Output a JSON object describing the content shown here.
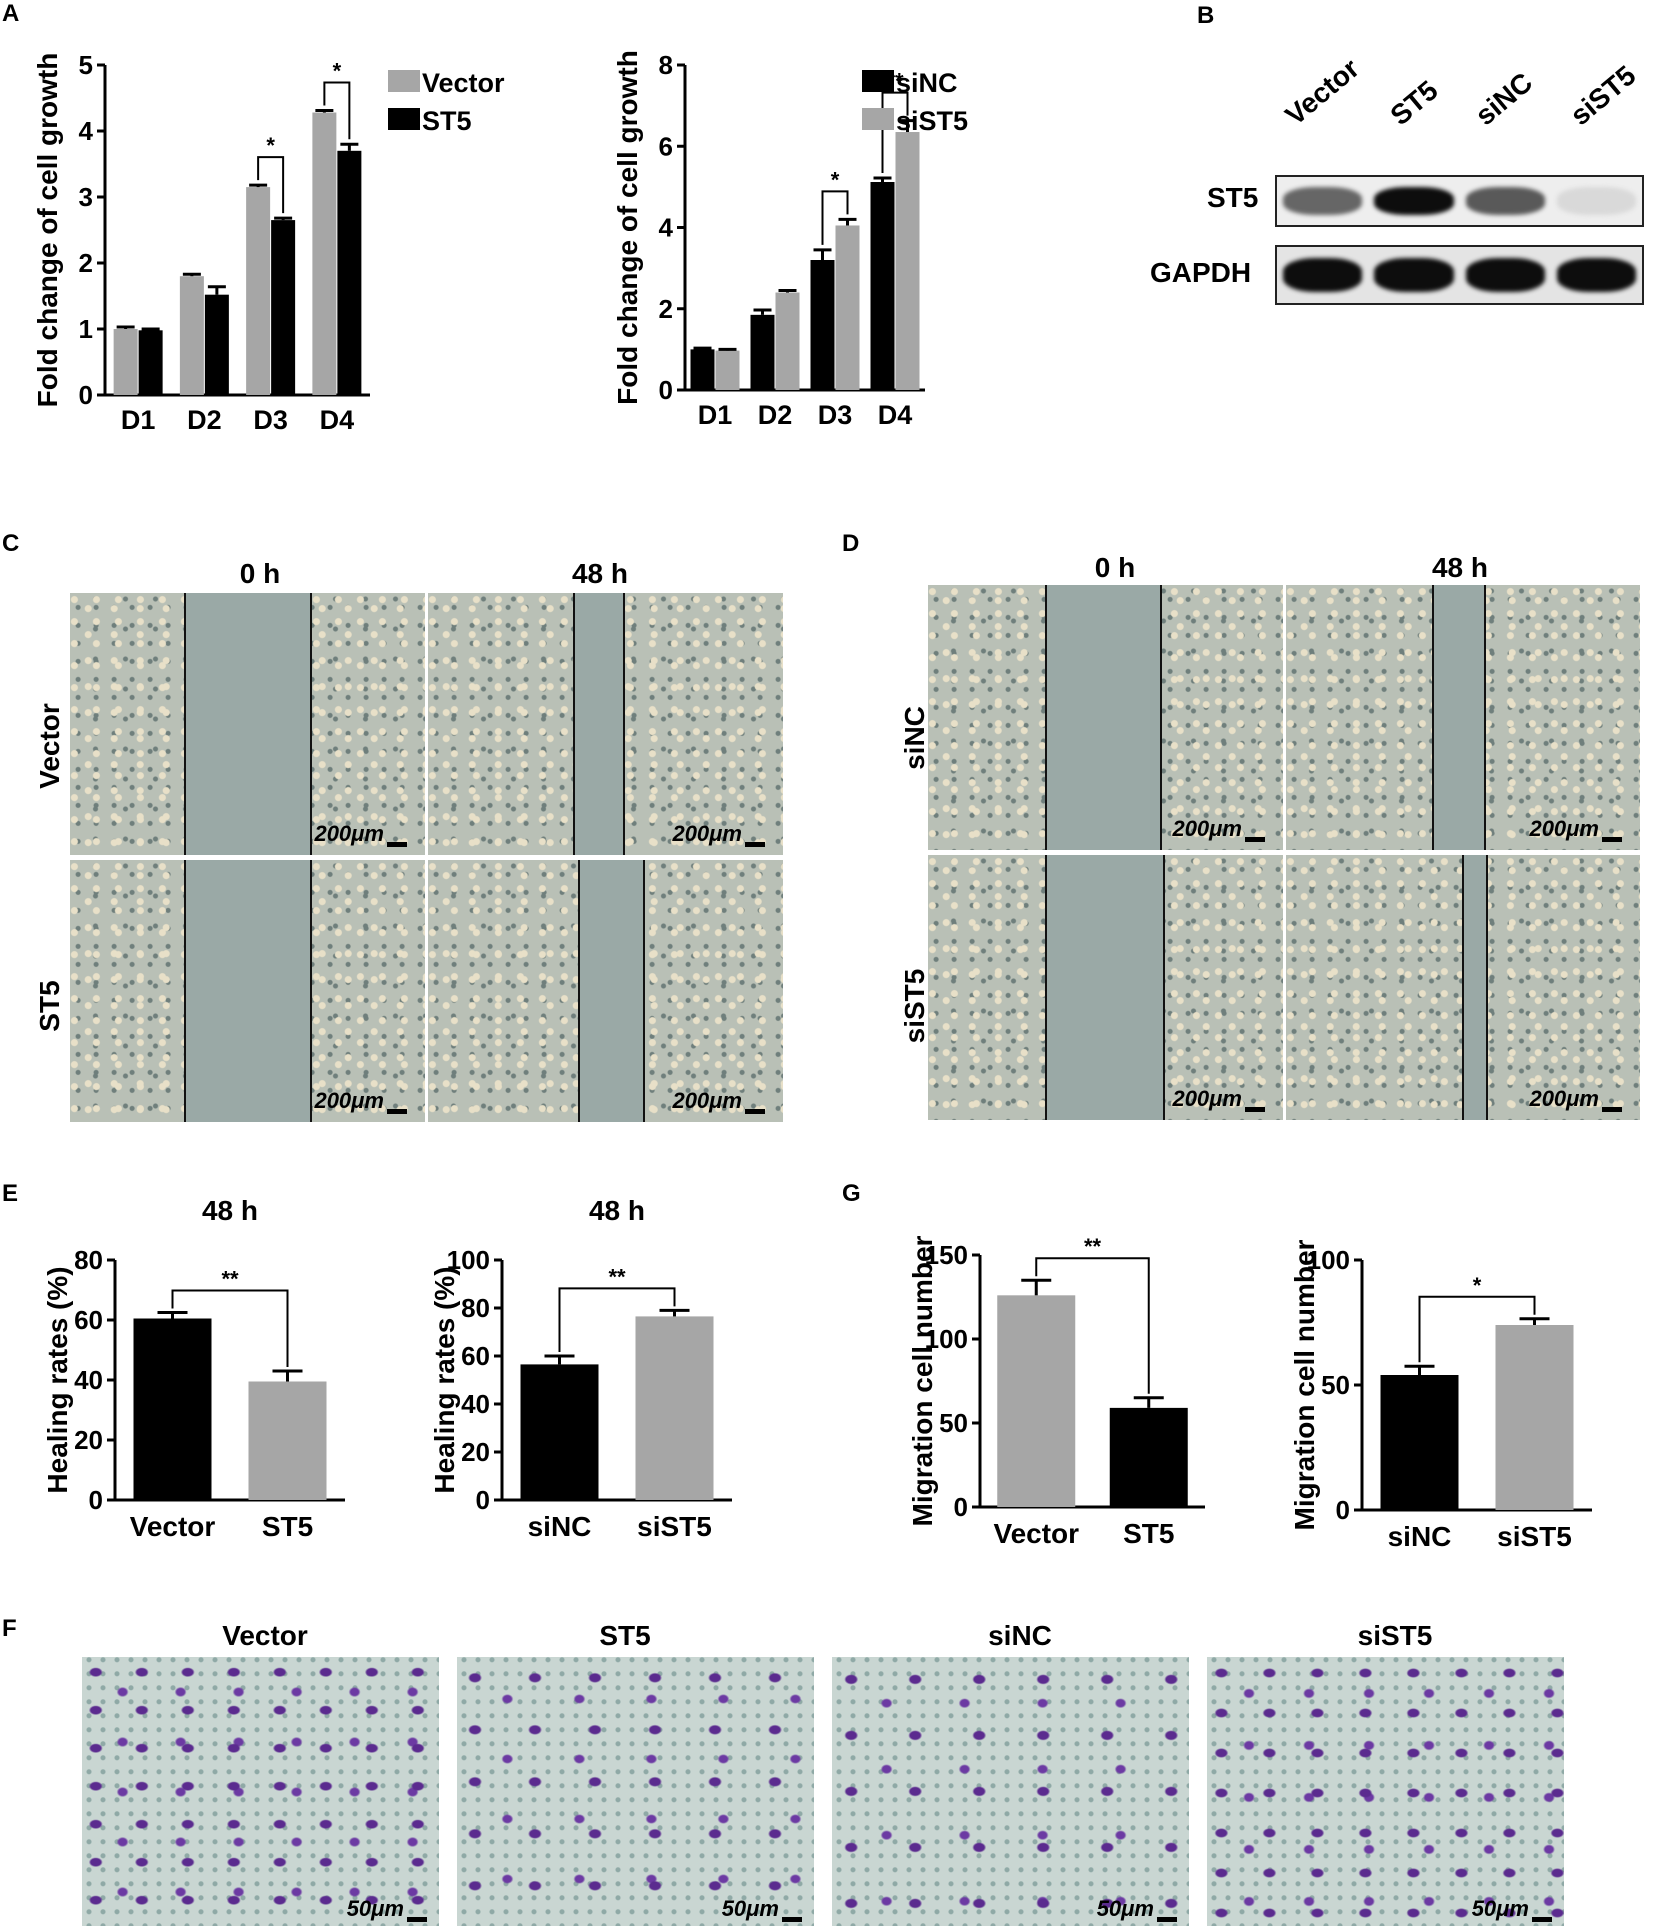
{
  "panels": {
    "a": "A",
    "b": "B",
    "c": "C",
    "d": "D",
    "e": "E",
    "f": "F",
    "g": "G"
  },
  "wound": {
    "time_0": "0 h",
    "time_48": "48 h",
    "c_rows": [
      "Vector",
      "ST5"
    ],
    "d_rows": [
      "siNC",
      "siST5"
    ],
    "scale": "200μm"
  },
  "transwell": {
    "labels": [
      "Vector",
      "ST5",
      "siNC",
      "siST5"
    ],
    "scale": "50μm"
  },
  "western": {
    "lanes": [
      "Vector",
      "ST5",
      "siNC",
      "siST5"
    ],
    "bands": [
      "ST5",
      "GAPDH"
    ],
    "st5_intensity": [
      0.6,
      0.95,
      0.65,
      0.15
    ],
    "gapdh_intensity": [
      0.95,
      0.95,
      0.95,
      0.95
    ]
  },
  "colors": {
    "gray": "#a6a6a6",
    "black": "#000000"
  },
  "chart_data": [
    {
      "id": "a1",
      "type": "bar",
      "categories": [
        "D1",
        "D2",
        "D3",
        "D4"
      ],
      "series": [
        {
          "name": "Vector",
          "color": "#a6a6a6",
          "values": [
            1.0,
            1.8,
            3.15,
            4.28
          ],
          "errors": [
            0.03,
            0.03,
            0.03,
            0.03
          ]
        },
        {
          "name": "ST5",
          "color": "#000000",
          "values": [
            0.98,
            1.52,
            2.65,
            3.7
          ],
          "errors": [
            0.02,
            0.12,
            0.03,
            0.1
          ]
        }
      ],
      "ylabel": "Fold change of cell growth",
      "ylim": [
        0,
        5
      ],
      "yticks": [
        0,
        1,
        2,
        3,
        4,
        5
      ],
      "significance": [
        {
          "category": "D3",
          "label": "*"
        },
        {
          "category": "D4",
          "label": "*"
        }
      ],
      "legend": "top-right"
    },
    {
      "id": "a2",
      "type": "bar",
      "categories": [
        "D1",
        "D2",
        "D3",
        "D4"
      ],
      "series": [
        {
          "name": "siNC",
          "color": "#000000",
          "values": [
            1.0,
            1.85,
            3.2,
            5.12
          ],
          "errors": [
            0.03,
            0.12,
            0.25,
            0.1
          ]
        },
        {
          "name": "siST5",
          "color": "#a6a6a6",
          "values": [
            0.97,
            2.4,
            4.05,
            6.35
          ],
          "errors": [
            0.03,
            0.05,
            0.15,
            0.28
          ]
        }
      ],
      "ylabel": "Fold change of cell growth",
      "ylim": [
        0,
        8
      ],
      "yticks": [
        0,
        2,
        4,
        6,
        8
      ],
      "significance": [
        {
          "category": "D3",
          "label": "*"
        },
        {
          "category": "D4",
          "label": "**"
        }
      ],
      "legend": "top-right"
    },
    {
      "id": "e1",
      "type": "bar",
      "title": "48 h",
      "categories": [
        "Vector",
        "ST5"
      ],
      "values": [
        60.5,
        39.5
      ],
      "errors": [
        2.0,
        3.5
      ],
      "colors": [
        "#000000",
        "#a6a6a6"
      ],
      "ylabel": "Healing rates (%)",
      "ylim": [
        0,
        80
      ],
      "yticks": [
        0,
        20,
        40,
        60,
        80
      ],
      "significance": "**"
    },
    {
      "id": "e2",
      "type": "bar",
      "title": "48 h",
      "categories": [
        "siNC",
        "siST5"
      ],
      "values": [
        56.5,
        76.5
      ],
      "errors": [
        3.5,
        2.5
      ],
      "colors": [
        "#000000",
        "#a6a6a6"
      ],
      "ylabel": "Healing rates (%)",
      "ylim": [
        0,
        100
      ],
      "yticks": [
        0,
        20,
        40,
        60,
        80,
        100
      ],
      "significance": "**"
    },
    {
      "id": "g1",
      "type": "bar",
      "categories": [
        "Vector",
        "ST5"
      ],
      "values": [
        126,
        59
      ],
      "errors": [
        9,
        6
      ],
      "colors": [
        "#a6a6a6",
        "#000000"
      ],
      "ylabel": "Migration cell number",
      "ylim": [
        0,
        150
      ],
      "yticks": [
        0,
        50,
        100,
        150
      ],
      "significance": "**"
    },
    {
      "id": "g2",
      "type": "bar",
      "categories": [
        "siNC",
        "siST5"
      ],
      "values": [
        54,
        74
      ],
      "errors": [
        3.5,
        2.5
      ],
      "colors": [
        "#000000",
        "#a6a6a6"
      ],
      "ylabel": "Migration cell number",
      "ylim": [
        0,
        100
      ],
      "yticks": [
        0,
        50,
        100
      ],
      "significance": "*"
    }
  ]
}
